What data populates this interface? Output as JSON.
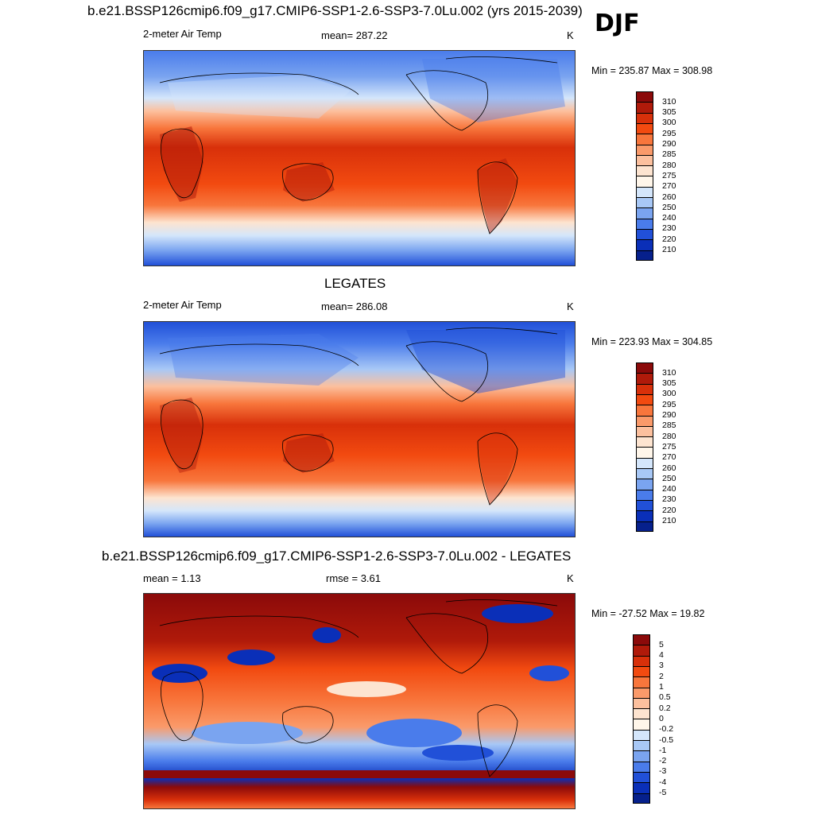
{
  "season": "DJF",
  "panels": [
    {
      "title": "b.e21.BSSP126cmip6.f09_g17.CMIP6-SSP1-2.6-SSP3-7.0Lu.002 (yrs 2015-2039)",
      "left_label": "2-meter Air Temp",
      "center_label": "mean= 287.22",
      "units": "K",
      "minmax": "Min = 235.87 Max = 308.98",
      "colorbar_ticks": [
        "310",
        "305",
        "300",
        "295",
        "290",
        "285",
        "280",
        "275",
        "270",
        "260",
        "250",
        "240",
        "230",
        "220",
        "210"
      ]
    },
    {
      "title": "LEGATES",
      "left_label": "2-meter Air Temp",
      "center_label": "mean= 286.08",
      "units": "K",
      "minmax": "Min = 223.93 Max = 304.85",
      "colorbar_ticks": [
        "310",
        "305",
        "300",
        "295",
        "290",
        "285",
        "280",
        "275",
        "270",
        "260",
        "250",
        "240",
        "230",
        "220",
        "210"
      ]
    },
    {
      "title": "b.e21.BSSP126cmip6.f09_g17.CMIP6-SSP1-2.6-SSP3-7.0Lu.002 - LEGATES",
      "left_label": "mean =   1.13",
      "center_label": "rmse =   3.61",
      "units": "K",
      "minmax": "Min = -27.52 Max =  19.82",
      "colorbar_ticks": [
        "5",
        "4",
        "3",
        "2",
        "1",
        "0.5",
        "0.2",
        "0",
        "-0.2",
        "-0.5",
        "-1",
        "-2",
        "-3",
        "-4",
        "-5"
      ]
    }
  ],
  "colors": {
    "temp_scale": [
      "#8b0a0a",
      "#b01a0a",
      "#d8300a",
      "#f24a10",
      "#f8763c",
      "#fa9a6a",
      "#fcc09e",
      "#fde4d0",
      "#fff6ea",
      "#d4e6fb",
      "#a8c8f6",
      "#7aa4f0",
      "#4a7ceb",
      "#2150d8",
      "#0a2fb8",
      "#06208c",
      "#020b6a"
    ],
    "diff_scale": [
      "#8b0a0a",
      "#b01a0a",
      "#d8300a",
      "#f24a10",
      "#f8763c",
      "#fa9a6a",
      "#fcc09e",
      "#fde4d0",
      "#fff6ea",
      "#d4e6fb",
      "#a8c8f6",
      "#7aa4f0",
      "#4a7ceb",
      "#2150d8",
      "#0a2fb8",
      "#06208c",
      "#020b6a"
    ]
  }
}
